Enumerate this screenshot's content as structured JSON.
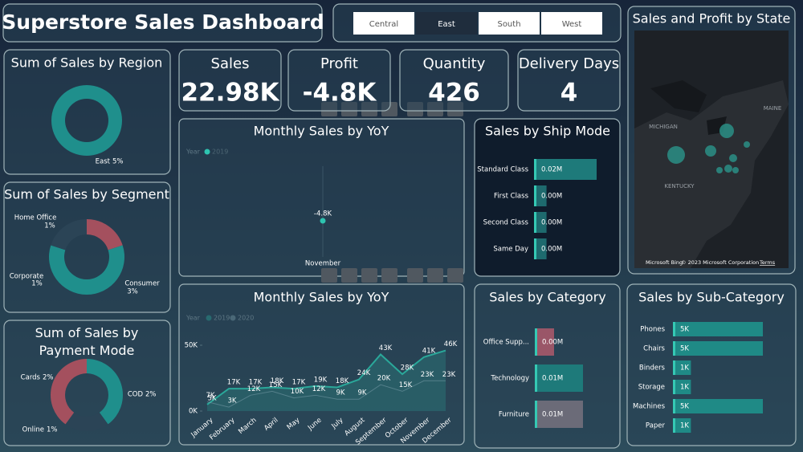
{
  "header": {
    "title": "Superstore Sales Dashboard"
  },
  "region_filter": {
    "options": [
      "Central",
      "East",
      "South",
      "West"
    ]
  },
  "kpis": [
    {
      "label": "Sales",
      "value": "22.98K"
    },
    {
      "label": "Profit",
      "value": "-4.8K"
    },
    {
      "label": "Quantity",
      "value": "426"
    },
    {
      "label": "Delivery Days",
      "value": "4"
    }
  ],
  "map": {
    "title": "Sales and Profit by State",
    "labels": [
      "MICHIGAN",
      "KENTUCKY",
      "MAINE"
    ],
    "attribution": [
      "Microsoft Bing",
      "© 2023 Microsoft Corporation",
      "Terms"
    ]
  },
  "chart_data": [
    {
      "type": "donut",
      "title": "Sum of Sales by Region",
      "categories": [
        "East"
      ],
      "values": [
        5
      ],
      "value_labels": [
        "5%"
      ],
      "colors": [
        "#1f8f8c"
      ]
    },
    {
      "type": "donut",
      "title": "Sum of Sales by Segment",
      "categories": [
        "Home Office",
        "Consumer",
        "Corporate"
      ],
      "values": [
        1,
        3,
        1
      ],
      "value_labels": [
        "1%",
        "3%",
        "1%"
      ],
      "colors": [
        "#a4505e",
        "#1f8f8c",
        "#2b4456"
      ]
    },
    {
      "type": "donut",
      "title": "Sum of Sales by Payment Mode",
      "categories": [
        "COD",
        "Online",
        "Cards"
      ],
      "values": [
        2,
        1,
        2
      ],
      "value_labels": [
        "2%",
        "1%",
        "2%"
      ],
      "colors": [
        "#1f8f8c",
        "#2b4456",
        "#a4505e"
      ]
    },
    {
      "type": "point",
      "title": "Monthly Sales by YoY",
      "legend_title": "Year",
      "series": [
        {
          "name": "2019",
          "color": "#2ec4b0",
          "values": [
            -4800
          ],
          "value_labels": [
            "-4.8K"
          ]
        }
      ],
      "categories": [
        "November"
      ]
    },
    {
      "type": "line",
      "title": "Monthly Sales by YoY",
      "legend_title": "Year",
      "categories": [
        "January",
        "February",
        "March",
        "April",
        "May",
        "June",
        "July",
        "August",
        "September",
        "October",
        "November",
        "December"
      ],
      "ylim": [
        0,
        50000
      ],
      "yticks": [
        {
          "value": 0,
          "label": "0K"
        },
        {
          "value": 50000,
          "label": "50K"
        }
      ],
      "series": [
        {
          "name": "2019",
          "color": "#2aa89a",
          "values": [
            5000,
            17000,
            17000,
            18000,
            17000,
            19000,
            18000,
            24000,
            43000,
            28000,
            41000,
            46000
          ],
          "value_labels": [
            "5K",
            "17K",
            "17K",
            "18K",
            "17K",
            "19K",
            "18K",
            "24K",
            "43K",
            "28K",
            "41K",
            "46K"
          ]
        },
        {
          "name": "2020",
          "color": "#7fa3b0",
          "values": [
            7000,
            3000,
            12000,
            15000,
            10000,
            12000,
            9000,
            9000,
            20000,
            15000,
            23000,
            23000
          ],
          "value_labels": [
            "7K",
            "3K",
            "12K",
            "15K",
            "10K",
            "12K",
            "9K",
            "9K",
            "20K",
            "15K",
            "23K",
            "23K"
          ]
        }
      ]
    },
    {
      "type": "hbar",
      "title": "Sales by Ship Mode",
      "categories": [
        "Standard Class",
        "First Class",
        "Second Class",
        "Same Day"
      ],
      "values": [
        0.02,
        0.004,
        0.004,
        0.004
      ],
      "value_labels": [
        "0.02M",
        "0.00M",
        "0.00M",
        "0.00M"
      ],
      "colors": [
        "#1e7a7a",
        "#1e6a6e",
        "#1e6a6e",
        "#1e6a6e"
      ]
    },
    {
      "type": "hbar",
      "title": "Sales by Category",
      "categories": [
        "Office Supp...",
        "Technology",
        "Furniture"
      ],
      "values": [
        0.004,
        0.01,
        0.01
      ],
      "value_labels": [
        "0.00M",
        "0.01M",
        "0.01M"
      ],
      "colors": [
        "#9a5668",
        "#1e7a7a",
        "#6b6b78"
      ]
    },
    {
      "type": "hbar",
      "title": "Sales by Sub-Category",
      "categories": [
        "Phones",
        "Chairs",
        "Binders",
        "Storage",
        "Machines",
        "Paper"
      ],
      "values": [
        5000,
        5000,
        1000,
        1000,
        5000,
        1000
      ],
      "value_labels": [
        "5K",
        "5K",
        "1K",
        "1K",
        "5K",
        "1K"
      ],
      "colors": [
        "#1f8a86",
        "#1f8a86",
        "#1f8a86",
        "#1f8a86",
        "#1f8a86",
        "#1f8a86"
      ]
    }
  ]
}
